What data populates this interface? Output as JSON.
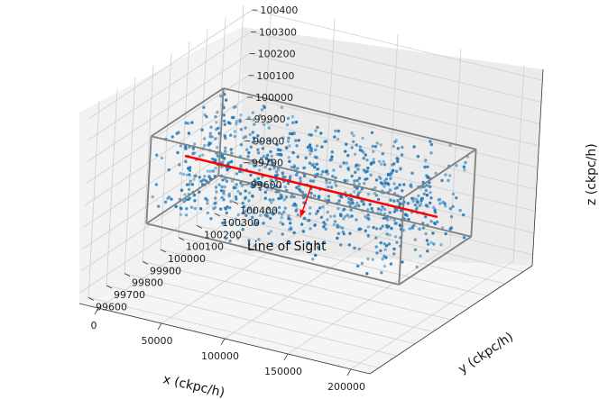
{
  "chart_data": {
    "type": "scatter",
    "projection": "3d",
    "title": "",
    "xlabel": "x  (ckpc/h)",
    "ylabel": "y  (ckpc/h)",
    "zlabel": "z  (ckpc/h)",
    "x_ticks": [
      "0",
      "50000",
      "100000",
      "150000",
      "200000"
    ],
    "y_ticks": [
      "99600",
      "99700",
      "99800",
      "99900",
      "100000",
      "100100",
      "100200",
      "100300",
      "100400"
    ],
    "z_ticks": [
      "99600",
      "99700",
      "99800",
      "99900",
      "100000",
      "100100",
      "100200",
      "100300",
      "100400"
    ],
    "xlim": [
      -15000,
      215000
    ],
    "ylim": [
      99550,
      100450
    ],
    "zlim": [
      99550,
      100450
    ],
    "grid": true,
    "box": {
      "x": [
        0,
        200000
      ],
      "y": [
        99800,
        100200
      ],
      "z": [
        99800,
        100200
      ],
      "color": "#808080"
    },
    "series": [
      {
        "kind": "points",
        "color": "#1f77b4",
        "count": 950,
        "x_range": [
          0,
          200000
        ],
        "y_range": [
          99800,
          100200
        ],
        "z_range": [
          99800,
          100200
        ]
      }
    ],
    "line_of_sight": {
      "label": "Line of Sight",
      "color": "#ff0000",
      "start": [
        0,
        100000,
        100000
      ],
      "end": [
        200000,
        100000,
        100000
      ]
    }
  }
}
